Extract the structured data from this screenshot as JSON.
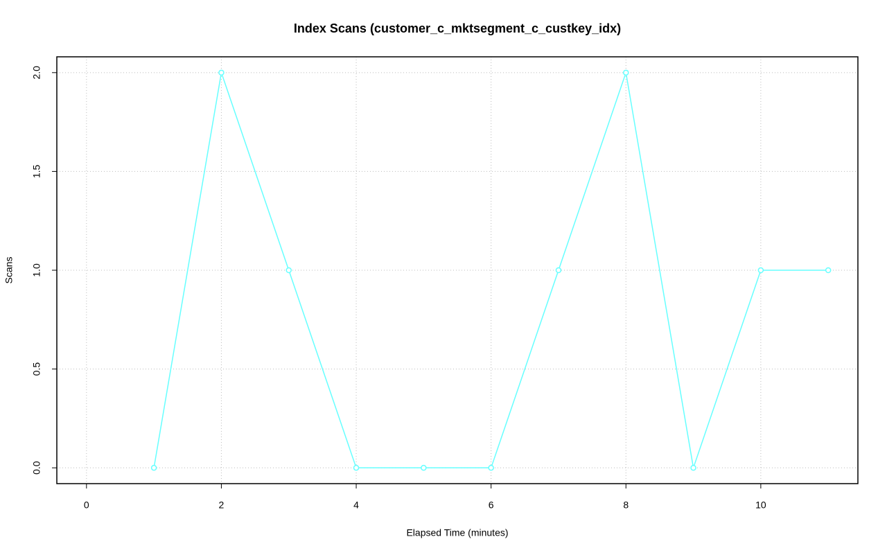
{
  "chart_data": {
    "type": "line",
    "title": "Index Scans (customer_c_mktsegment_c_custkey_idx)",
    "x_label": "Elapsed Time (minutes)",
    "y_label": "Scans",
    "x": [
      1,
      2,
      3,
      4,
      5,
      6,
      7,
      8,
      9,
      10,
      11
    ],
    "series": [
      {
        "name": "Scans",
        "color": "#66ffff",
        "values": [
          0,
          2,
          1,
          0,
          0,
          0,
          1,
          2,
          0,
          1,
          1
        ]
      }
    ],
    "xlim": [
      -0.44,
      11.44
    ],
    "ylim": [
      -0.08,
      2.08
    ],
    "xticks": [
      0,
      2,
      4,
      6,
      8,
      10
    ],
    "yticks": [
      {
        "value": 0,
        "label": "0.0"
      },
      0.5,
      {
        "value": 1,
        "label": "1.0"
      },
      1.5,
      {
        "value": 2,
        "label": "2.0"
      }
    ],
    "grid": true
  }
}
